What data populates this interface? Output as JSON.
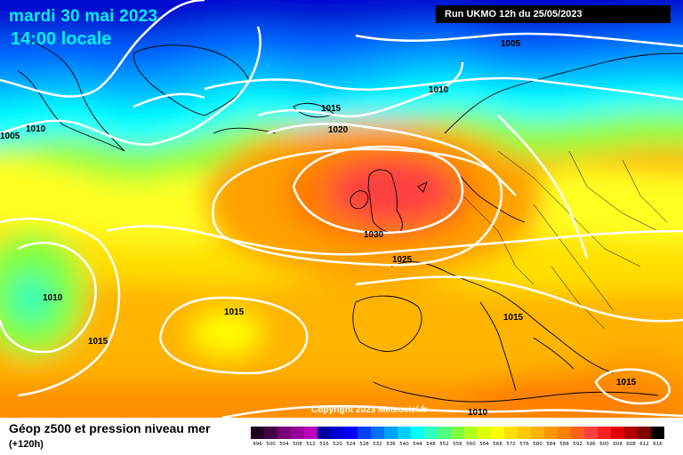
{
  "header": {
    "date": "mardi 30 mai 2023",
    "time": "14:00 locale",
    "run": "Run UKMO 12h du 25/05/2023"
  },
  "footer": {
    "title": "Géop z500 et pression niveau mer",
    "forecast_hour": "(+120h)",
    "copyright": "Copyright 2023 Meteociel.fr"
  },
  "isobar_labels": [
    "1005",
    "1010",
    "1015",
    "1020",
    "1005",
    "1010",
    "1030",
    "1025",
    "1010",
    "1015",
    "1015",
    "1015",
    "1015",
    "1010"
  ],
  "legend": {
    "ticks": [
      "496",
      "500",
      "504",
      "508",
      "512",
      "516",
      "520",
      "524",
      "528",
      "532",
      "536",
      "540",
      "544",
      "548",
      "552",
      "556",
      "560",
      "564",
      "568",
      "572",
      "576",
      "580",
      "584",
      "588",
      "592",
      "596",
      "600",
      "604",
      "608",
      "612",
      "616"
    ],
    "colors": [
      "#200020",
      "#440044",
      "#770077",
      "#990099",
      "#bb00bb",
      "#0000a0",
      "#0000d0",
      "#0000ff",
      "#0040ff",
      "#0070ff",
      "#00a0ff",
      "#00d0ff",
      "#00ffff",
      "#30ffc0",
      "#50ff80",
      "#80ff40",
      "#b0ff20",
      "#e0ff00",
      "#ffff00",
      "#ffe000",
      "#ffc800",
      "#ffb000",
      "#ff9800",
      "#ff8000",
      "#ff6020",
      "#ff4040",
      "#ff2020",
      "#e00000",
      "#b00000",
      "#800000",
      "#000000"
    ]
  },
  "colors": {
    "header_text": "#00f0f0",
    "isobar": "#ffffff",
    "coastline": "#000000"
  }
}
